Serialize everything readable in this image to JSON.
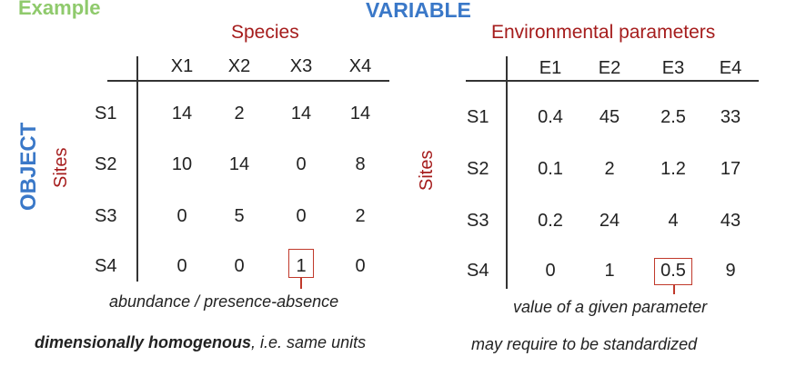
{
  "example_label": "Example",
  "variable_label": "VARIABLE",
  "object_label": "OBJECT",
  "left_table": {
    "title": "Species",
    "row_axis_label": "Sites",
    "columns": [
      "X1",
      "X2",
      "X3",
      "X4"
    ],
    "rows": [
      {
        "label": "S1",
        "values": [
          "14",
          "2",
          "14",
          "14"
        ]
      },
      {
        "label": "S2",
        "values": [
          "10",
          "14",
          "0",
          "8"
        ]
      },
      {
        "label": "S3",
        "values": [
          "0",
          "5",
          "0",
          "2"
        ]
      },
      {
        "label": "S4",
        "values": [
          "0",
          "0",
          "1",
          "0"
        ]
      }
    ],
    "highlighted": {
      "row": 3,
      "col": 2
    },
    "caption": "abundance / presence-absence",
    "note_bold": "dimensionally homogenous",
    "note_rest": ", i.e. same units"
  },
  "right_table": {
    "title": "Environmental parameters",
    "row_axis_label": "Sites",
    "columns": [
      "E1",
      "E2",
      "E3",
      "E4"
    ],
    "rows": [
      {
        "label": "S1",
        "values": [
          "0.4",
          "45",
          "2.5",
          "33"
        ]
      },
      {
        "label": "S2",
        "values": [
          "0.1",
          "2",
          "1.2",
          "17"
        ]
      },
      {
        "label": "S3",
        "values": [
          "0.2",
          "24",
          "4",
          "43"
        ]
      },
      {
        "label": "S4",
        "values": [
          "0",
          "1",
          "0.5",
          "9"
        ]
      }
    ],
    "highlighted": {
      "row": 3,
      "col": 2
    },
    "caption": "value of a given parameter",
    "note": "may require to be standardized"
  },
  "colors": {
    "green": "#8fca6c",
    "blue": "#3a78c8",
    "red": "#a51c1c",
    "box": "#c0392b"
  }
}
